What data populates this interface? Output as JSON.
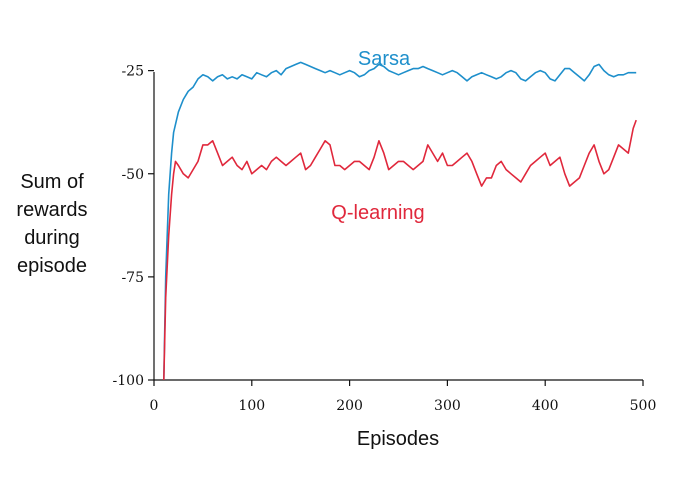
{
  "chart_data": {
    "type": "line",
    "title": "",
    "xlabel": "Episodes",
    "ylabel_lines": [
      "Sum of",
      "rewards",
      "during",
      "episode"
    ],
    "xlim": [
      0,
      500
    ],
    "ylim": [
      -100,
      -20
    ],
    "xticks": [
      0,
      100,
      200,
      300,
      400,
      500
    ],
    "xtick_labels": [
      "0",
      "100",
      "200",
      "300",
      "400",
      "500"
    ],
    "yticks": [
      -25,
      -50,
      -75,
      -100
    ],
    "ytick_labels": [
      "-25",
      "-50",
      "-75",
      "-100"
    ],
    "grid": false,
    "legend": "inline labels",
    "series": [
      {
        "name": "Sarsa",
        "color": "#1e8fcb",
        "x": [
          10,
          12,
          15,
          18,
          20,
          25,
          30,
          35,
          40,
          45,
          50,
          55,
          60,
          65,
          70,
          75,
          80,
          85,
          90,
          95,
          100,
          105,
          110,
          115,
          120,
          125,
          130,
          135,
          140,
          145,
          150,
          155,
          160,
          165,
          170,
          175,
          180,
          185,
          190,
          195,
          200,
          205,
          210,
          215,
          220,
          225,
          230,
          235,
          240,
          245,
          250,
          255,
          260,
          265,
          270,
          275,
          280,
          285,
          290,
          295,
          300,
          305,
          310,
          315,
          320,
          325,
          330,
          335,
          340,
          345,
          350,
          355,
          360,
          365,
          370,
          375,
          380,
          385,
          390,
          395,
          400,
          405,
          410,
          415,
          420,
          425,
          430,
          435,
          440,
          445,
          450,
          455,
          460,
          465,
          470,
          475,
          480,
          485,
          490,
          493
        ],
        "y": [
          -100,
          -75,
          -55,
          -45,
          -40,
          -35,
          -32,
          -30,
          -29,
          -27,
          -26,
          -26.5,
          -27.5,
          -26.5,
          -26,
          -27,
          -26.5,
          -27,
          -26,
          -26.5,
          -27,
          -25.5,
          -26,
          -26.5,
          -25.5,
          -25,
          -26,
          -24.5,
          -24,
          -23.5,
          -23,
          -23.5,
          -24,
          -24.5,
          -25,
          -25.5,
          -25,
          -25.5,
          -26,
          -25.5,
          -25,
          -25.5,
          -26.5,
          -26,
          -25,
          -24.5,
          -23.5,
          -24,
          -25,
          -25.5,
          -26,
          -25.5,
          -25,
          -24.5,
          -24.5,
          -24,
          -24.5,
          -25,
          -25.5,
          -26,
          -25.5,
          -25,
          -25.5,
          -26.5,
          -27.5,
          -26.5,
          -26,
          -25.5,
          -26,
          -26.5,
          -27,
          -26.5,
          -25.5,
          -25,
          -25.5,
          -27,
          -27.5,
          -26.5,
          -25.5,
          -25,
          -25.5,
          -27,
          -27.5,
          -26,
          -24.5,
          -24.5,
          -25.5,
          -26.5,
          -27.5,
          -26,
          -24,
          -23.5,
          -25,
          -26,
          -26.5,
          -26,
          -26,
          -25.5,
          -25.5,
          -25.5
        ]
      },
      {
        "name": "Q-learning",
        "color": "#e0283c",
        "x": [
          10,
          12,
          15,
          18,
          20,
          22,
          25,
          30,
          35,
          40,
          45,
          50,
          55,
          60,
          65,
          70,
          75,
          80,
          85,
          90,
          95,
          100,
          105,
          110,
          115,
          120,
          125,
          130,
          135,
          140,
          145,
          150,
          155,
          160,
          165,
          170,
          175,
          180,
          185,
          190,
          195,
          200,
          205,
          210,
          215,
          220,
          225,
          230,
          235,
          240,
          245,
          250,
          255,
          260,
          265,
          270,
          275,
          280,
          285,
          290,
          295,
          300,
          305,
          310,
          315,
          320,
          325,
          330,
          335,
          340,
          345,
          350,
          355,
          360,
          365,
          370,
          375,
          380,
          385,
          390,
          395,
          400,
          405,
          410,
          415,
          420,
          425,
          430,
          435,
          440,
          445,
          450,
          455,
          460,
          465,
          470,
          475,
          480,
          485,
          490,
          493
        ],
        "y": [
          -100,
          -80,
          -65,
          -55,
          -50,
          -47,
          -48,
          -50,
          -51,
          -49,
          -47,
          -43,
          -43,
          -42,
          -45,
          -48,
          -47,
          -46,
          -48,
          -49,
          -47,
          -50,
          -49,
          -48,
          -49,
          -47,
          -46,
          -47,
          -48,
          -47,
          -46,
          -45,
          -49,
          -48,
          -46,
          -44,
          -42,
          -43,
          -48,
          -48,
          -49,
          -48,
          -47,
          -47,
          -48,
          -49,
          -46,
          -42,
          -45,
          -49,
          -48,
          -47,
          -47,
          -48,
          -49,
          -48,
          -47,
          -43,
          -45,
          -47,
          -45,
          -48,
          -48,
          -47,
          -46,
          -45,
          -47,
          -50,
          -53,
          -51,
          -51,
          -48,
          -47,
          -49,
          -50,
          -51,
          -52,
          -50,
          -48,
          -47,
          -46,
          -45,
          -48,
          -47,
          -46,
          -50,
          -53,
          -52,
          -51,
          -48,
          -45,
          -43,
          -47,
          -50,
          -49,
          -46,
          -43,
          -44,
          -45,
          -39,
          -37
        ]
      }
    ]
  }
}
